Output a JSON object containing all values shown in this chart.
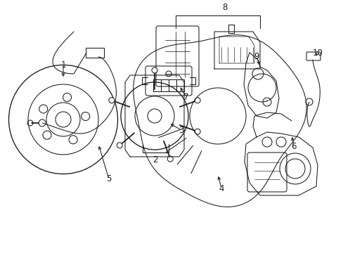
{
  "background_color": "#ffffff",
  "line_color": "#1a1a1a",
  "label_color": "#1a1a1a",
  "fig_width": 4.89,
  "fig_height": 3.6,
  "dpi": 100,
  "lw": 0.75,
  "label_fs": 8.5
}
